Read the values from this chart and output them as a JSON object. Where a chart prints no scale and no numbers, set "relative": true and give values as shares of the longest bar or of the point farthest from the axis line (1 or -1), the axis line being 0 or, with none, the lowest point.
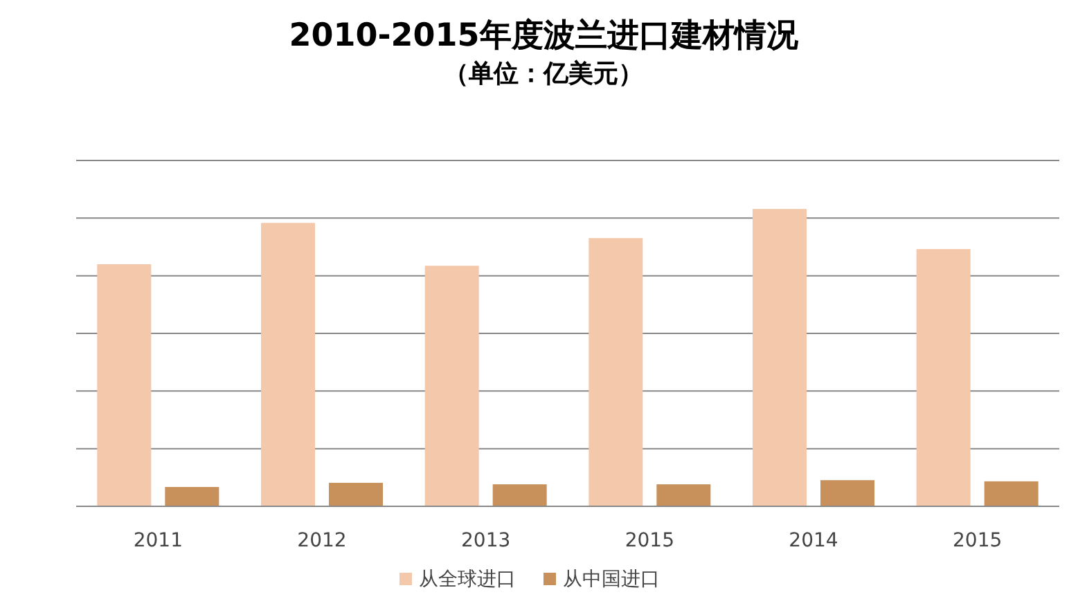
{
  "chart_data": {
    "type": "bar",
    "title": "2010-2015年度波兰进口建材情况",
    "subtitle": "（单位：亿美元）",
    "relative": true,
    "grid": "y",
    "legend": "bottom",
    "categories": [
      "2011",
      "2012",
      "2013",
      "2015",
      "2014",
      "2015"
    ],
    "series": [
      {
        "name": "从全球进口",
        "color": "#f4c8aa",
        "values": [
          0.814,
          0.953,
          0.809,
          0.902,
          1,
          0.865
        ]
      },
      {
        "name": "从中国进口",
        "color": "#c8915c",
        "values": [
          0.065,
          0.079,
          0.074,
          0.074,
          0.088,
          0.084
        ]
      }
    ]
  }
}
